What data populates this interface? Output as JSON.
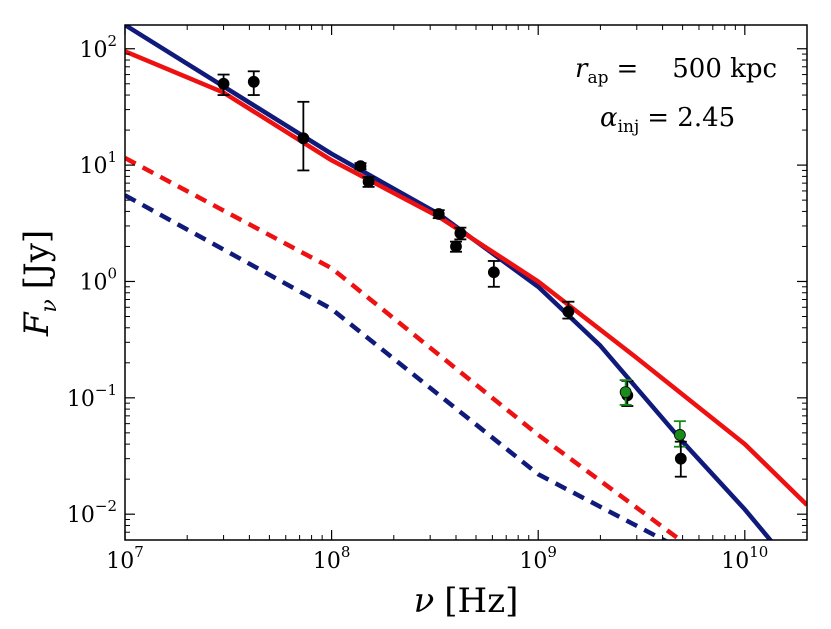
{
  "chart_data": {
    "type": "line",
    "x_scale": "log",
    "y_scale": "log",
    "xlim": [
      10000000,
      20000000000
    ],
    "ylim": [
      0.006,
      160
    ],
    "x_ticks": [
      {
        "value": 10000000,
        "base": "10",
        "exp": "7"
      },
      {
        "value": 100000000,
        "base": "10",
        "exp": "8"
      },
      {
        "value": 1000000000,
        "base": "10",
        "exp": "9"
      },
      {
        "value": 10000000000,
        "base": "10",
        "exp": "10"
      }
    ],
    "y_ticks": [
      {
        "value": 0.01,
        "base": "10",
        "exp": "−2"
      },
      {
        "value": 0.1,
        "base": "10",
        "exp": "−1"
      },
      {
        "value": 1,
        "base": "10",
        "exp": "0"
      },
      {
        "value": 10,
        "base": "10",
        "exp": "1"
      },
      {
        "value": 100,
        "base": "10",
        "exp": "2"
      }
    ],
    "xlabel": {
      "symbol": "ν",
      "unit": "[Hz]"
    },
    "ylabel": {
      "symbol": "F",
      "sub": "ν",
      "unit": "[Jy]"
    },
    "annotations": {
      "r_ap": {
        "symbol": "r",
        "sub": "ap",
        "eq": "=",
        "value": "500 kpc"
      },
      "alpha_inj": {
        "symbol": "α",
        "sub": "inj",
        "eq": "= 2.45"
      }
    },
    "series": [
      {
        "name": "blue-solid",
        "color": "#0f1a7a",
        "style": "solid",
        "x": [
          10000000,
          100000000,
          330000000,
          1000000000,
          2000000000,
          5000000000,
          10000000000,
          13500000000
        ],
        "y": [
          160,
          12.5,
          3.8,
          0.9,
          0.28,
          0.042,
          0.011,
          0.0058
        ]
      },
      {
        "name": "red-solid",
        "color": "#ee1111",
        "style": "solid",
        "x": [
          10000000,
          30000000,
          100000000,
          330000000,
          1000000000,
          3000000000,
          10000000000,
          20000000000
        ],
        "y": [
          95,
          42,
          11,
          3.6,
          1.0,
          0.22,
          0.04,
          0.012
        ]
      },
      {
        "name": "red-dashed",
        "color": "#ee1111",
        "style": "dashed",
        "x": [
          10000000,
          100000000,
          1000000000,
          5000000000
        ],
        "y": [
          11.5,
          1.3,
          0.048,
          0.0058
        ]
      },
      {
        "name": "blue-dashed",
        "color": "#0f1a7a",
        "style": "dashed",
        "x": [
          10000000,
          100000000,
          1000000000,
          4200000000
        ],
        "y": [
          5.5,
          0.58,
          0.022,
          0.0058
        ]
      }
    ],
    "points": [
      {
        "x": 30000000,
        "y": 50,
        "yerr_lo": 10,
        "yerr_hi": 10,
        "color": "#000000"
      },
      {
        "x": 42000000,
        "y": 52,
        "yerr_lo": 12,
        "yerr_hi": 12,
        "color": "#000000"
      },
      {
        "x": 73000000,
        "y": 17,
        "yerr_lo": 8,
        "yerr_hi": 18,
        "color": "#000000"
      },
      {
        "x": 138000000,
        "y": 9.8,
        "yerr_lo": 0.6,
        "yerr_hi": 0.6,
        "color": "#000000"
      },
      {
        "x": 151000000,
        "y": 7.2,
        "yerr_lo": 0.7,
        "yerr_hi": 0.7,
        "color": "#000000"
      },
      {
        "x": 330000000,
        "y": 3.8,
        "yerr_lo": 0.3,
        "yerr_hi": 0.3,
        "color": "#000000"
      },
      {
        "x": 400000000,
        "y": 2.0,
        "yerr_lo": 0.2,
        "yerr_hi": 0.2,
        "color": "#000000"
      },
      {
        "x": 420000000,
        "y": 2.6,
        "yerr_lo": 0.3,
        "yerr_hi": 0.3,
        "color": "#000000"
      },
      {
        "x": 610000000,
        "y": 1.2,
        "yerr_lo": 0.3,
        "yerr_hi": 0.3,
        "color": "#000000"
      },
      {
        "x": 1400000000,
        "y": 0.55,
        "yerr_lo": 0.07,
        "yerr_hi": 0.12,
        "color": "#000000"
      },
      {
        "x": 2700000000,
        "y": 0.105,
        "yerr_lo": 0.02,
        "yerr_hi": 0.035,
        "color": "#000000"
      },
      {
        "x": 2650000000,
        "y": 0.112,
        "yerr_lo": 0.025,
        "yerr_hi": 0.03,
        "color": "#1a8a1a"
      },
      {
        "x": 4850000000,
        "y": 0.048,
        "yerr_lo": 0.01,
        "yerr_hi": 0.015,
        "color": "#1a8a1a"
      },
      {
        "x": 4900000000,
        "y": 0.03,
        "yerr_lo": 0.009,
        "yerr_hi": 0.012,
        "color": "#000000"
      }
    ]
  }
}
